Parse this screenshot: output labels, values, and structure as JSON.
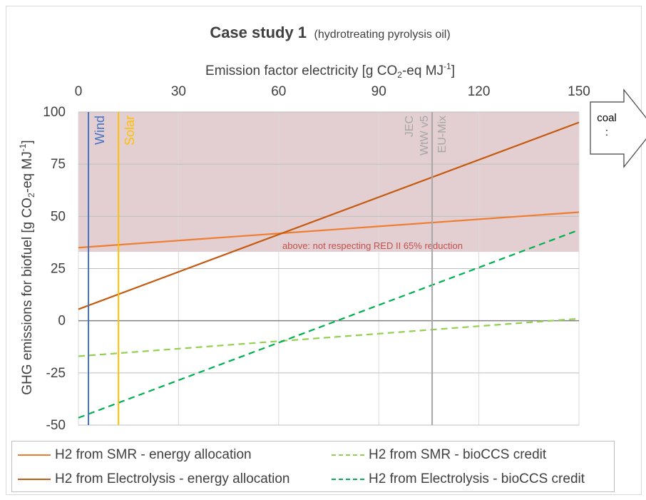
{
  "chart_data": {
    "type": "line",
    "title": "Case study 1",
    "subtitle": "(hydrotreating pyrolysis oil)",
    "xlabel_main": "Emission factor electricity [g CO",
    "xlabel_sub": "2",
    "xlabel_mid": "-eq MJ",
    "xlabel_sup": "-1",
    "xlabel_end": "]",
    "ylabel_main": "GHG emissions for biofuel [g CO",
    "ylabel_sub": "2",
    "ylabel_mid": "-eq MJ",
    "ylabel_sup": "-1",
    "ylabel_end": "]",
    "xlim": [
      0,
      150
    ],
    "ylim": [
      -50,
      100
    ],
    "x_ticks": [
      0,
      30,
      60,
      90,
      120,
      150
    ],
    "y_ticks": [
      100,
      75,
      50,
      25,
      0,
      -25,
      -50
    ],
    "grid": true,
    "x_axis_position": "top",
    "legend_position": "bottom",
    "shaded_region": {
      "y_from": 33,
      "y_to": 100,
      "label": "above: not respecting RED II 65% reduction",
      "color": "#d9bfc1"
    },
    "reference_lines": [
      {
        "x": 3,
        "label": "Wind",
        "color": "#4472c4"
      },
      {
        "x": 12,
        "label": "Solar",
        "color": "#ffc000"
      },
      {
        "x": 106,
        "label": "EU-Mix",
        "label2": "JEC",
        "label3": "WtW v5",
        "color": "#a6a6a6"
      }
    ],
    "series": [
      {
        "name": "H2 from SMR - energy allocation",
        "x": [
          0,
          150
        ],
        "y": [
          35,
          52
        ],
        "color": "#ed7d31",
        "dash": false
      },
      {
        "name": "H2 from SMR - bioCCS credit",
        "x": [
          0,
          150
        ],
        "y": [
          -17,
          1
        ],
        "color": "#92d050",
        "dash": true
      },
      {
        "name": "H2 from Electrolysis - energy allocation",
        "x": [
          0,
          150
        ],
        "y": [
          5.5,
          95
        ],
        "color": "#c55a11",
        "dash": false
      },
      {
        "name": "H2 from Electrolysis - bioCCS credit",
        "x": [
          0,
          150
        ],
        "y": [
          -46.5,
          43.5
        ],
        "color": "#00b050",
        "dash": true
      }
    ],
    "annotation_arrow": {
      "line1": "coal",
      "line2": ":"
    }
  }
}
